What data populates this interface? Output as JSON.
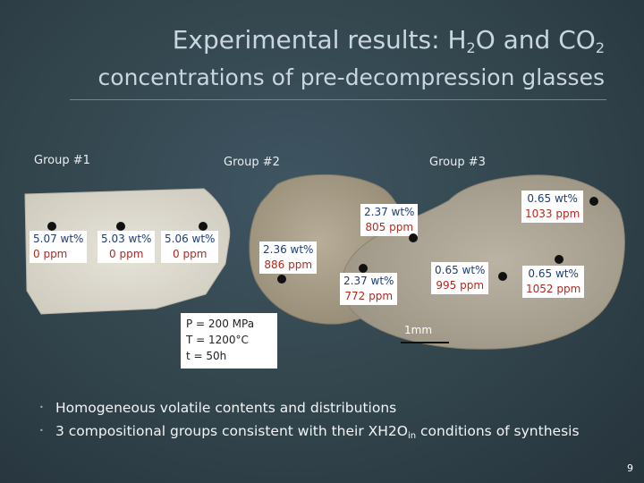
{
  "title": {
    "line1_prefix": "Experimental results: H",
    "line1_sub1": "2",
    "line1_mid": "O and CO",
    "line1_sub2": "2",
    "line2": "concentrations of pre-decompression glasses"
  },
  "groups": [
    {
      "label": "Group #1"
    },
    {
      "label": "Group #2"
    },
    {
      "label": "Group #3"
    }
  ],
  "measurements": {
    "g1a": {
      "line1": "5.07 wt%",
      "line2": "0 ppm"
    },
    "g1b": {
      "line1": "5.03 wt%",
      "line2": "0 ppm"
    },
    "g1c": {
      "line1": "5.06 wt%",
      "line2": "0 ppm"
    },
    "g2a": {
      "line1": "2.36 wt%",
      "line2": "886 ppm"
    },
    "g2b": {
      "line1": "2.37 wt%",
      "line2": "805 ppm"
    },
    "g2c": {
      "line1": "2.37 wt%",
      "line2": "772 ppm"
    },
    "g3a": {
      "line1": "0.65 wt%",
      "line2": "1033 ppm"
    },
    "g3b": {
      "line1": "0.65 wt%",
      "line2": "995 ppm"
    },
    "g3c": {
      "line1": "0.65 wt%",
      "line2": "1052 ppm"
    }
  },
  "conditions": {
    "pressure": "P = 200 MPa",
    "temperature": "T = 1200°C",
    "time": "t = 50h"
  },
  "scale_bar": {
    "label": "1mm"
  },
  "bullets": {
    "b1": "Homogeneous volatile contents and distributions",
    "b2_prefix": "3 compositional groups consistent with their XH2O",
    "b2_sub": "in",
    "b2_suffix": " conditions of synthesis"
  },
  "page_number": "9",
  "colors": {
    "water": "#1f3c74",
    "co2": "#b5281f",
    "background": "#34474f"
  }
}
